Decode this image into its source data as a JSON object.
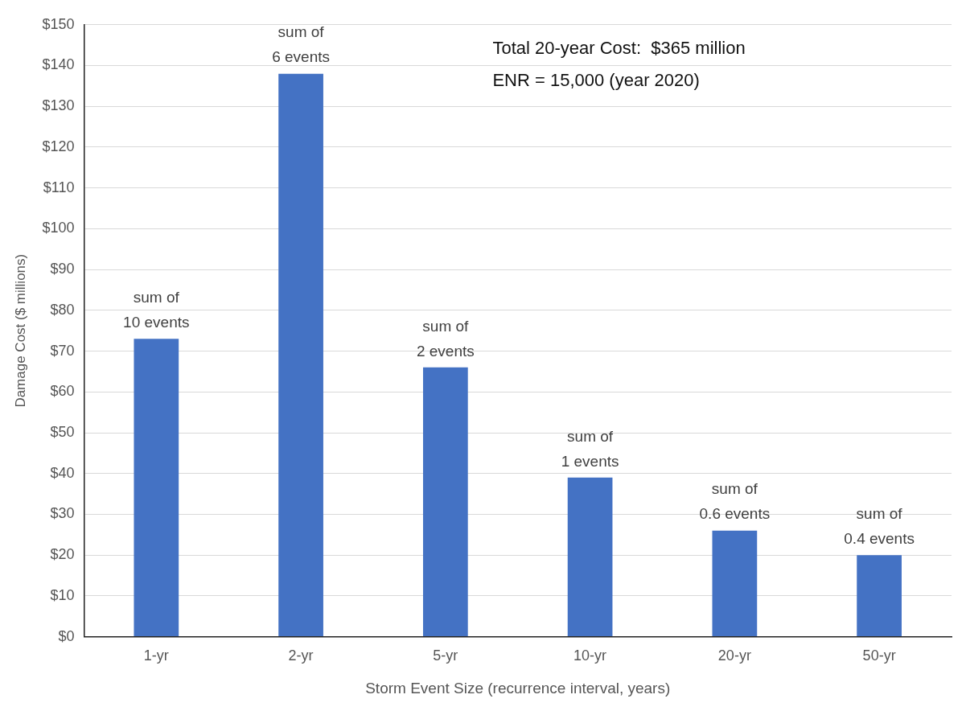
{
  "chart_data": {
    "type": "bar",
    "xlabel": "Storm Event Size (recurrence interval, years)",
    "ylabel": "Damage Cost ($ millions)",
    "categories": [
      "1-yr",
      "2-yr",
      "5-yr",
      "10-yr",
      "20-yr",
      "50-yr"
    ],
    "values": [
      73,
      138,
      66,
      39,
      26,
      20
    ],
    "color": "#4472c4",
    "ylim": [
      0,
      150
    ],
    "yticks": [
      {
        "value": 0,
        "label": "$0"
      },
      {
        "value": 10,
        "label": "$10"
      },
      {
        "value": 20,
        "label": "$20"
      },
      {
        "value": 30,
        "label": "$30"
      },
      {
        "value": 40,
        "label": "$40"
      },
      {
        "value": 50,
        "label": "$50"
      },
      {
        "value": 60,
        "label": "$60"
      },
      {
        "value": 70,
        "label": "$70"
      },
      {
        "value": 80,
        "label": "$80"
      },
      {
        "value": 90,
        "label": "$90"
      },
      {
        "value": 100,
        "label": "$100"
      },
      {
        "value": 110,
        "label": "$110"
      },
      {
        "value": 120,
        "label": "$120"
      },
      {
        "value": 130,
        "label": "$130"
      },
      {
        "value": 140,
        "label": "$140"
      },
      {
        "value": 150,
        "label": "$150"
      }
    ],
    "grid": "y",
    "annotations": [
      "Total 20-year Cost:  $365 million",
      "ENR = 15,000 (year 2020)",
      {
        "text": "sum of\n10 events",
        "x": "1-yr",
        "y": 73
      },
      {
        "text": "sum of\n6 events",
        "x": "2-yr",
        "y": 138
      },
      {
        "text": "sum of\n2 events",
        "x": "5-yr",
        "y": 66
      },
      {
        "text": "sum of\n1 events",
        "x": "10-yr",
        "y": 39
      },
      {
        "text": "sum of\n0.6 events",
        "x": "20-yr",
        "y": 26
      },
      {
        "text": "sum of\n0.4 events",
        "x": "50-yr",
        "y": 20
      }
    ]
  }
}
